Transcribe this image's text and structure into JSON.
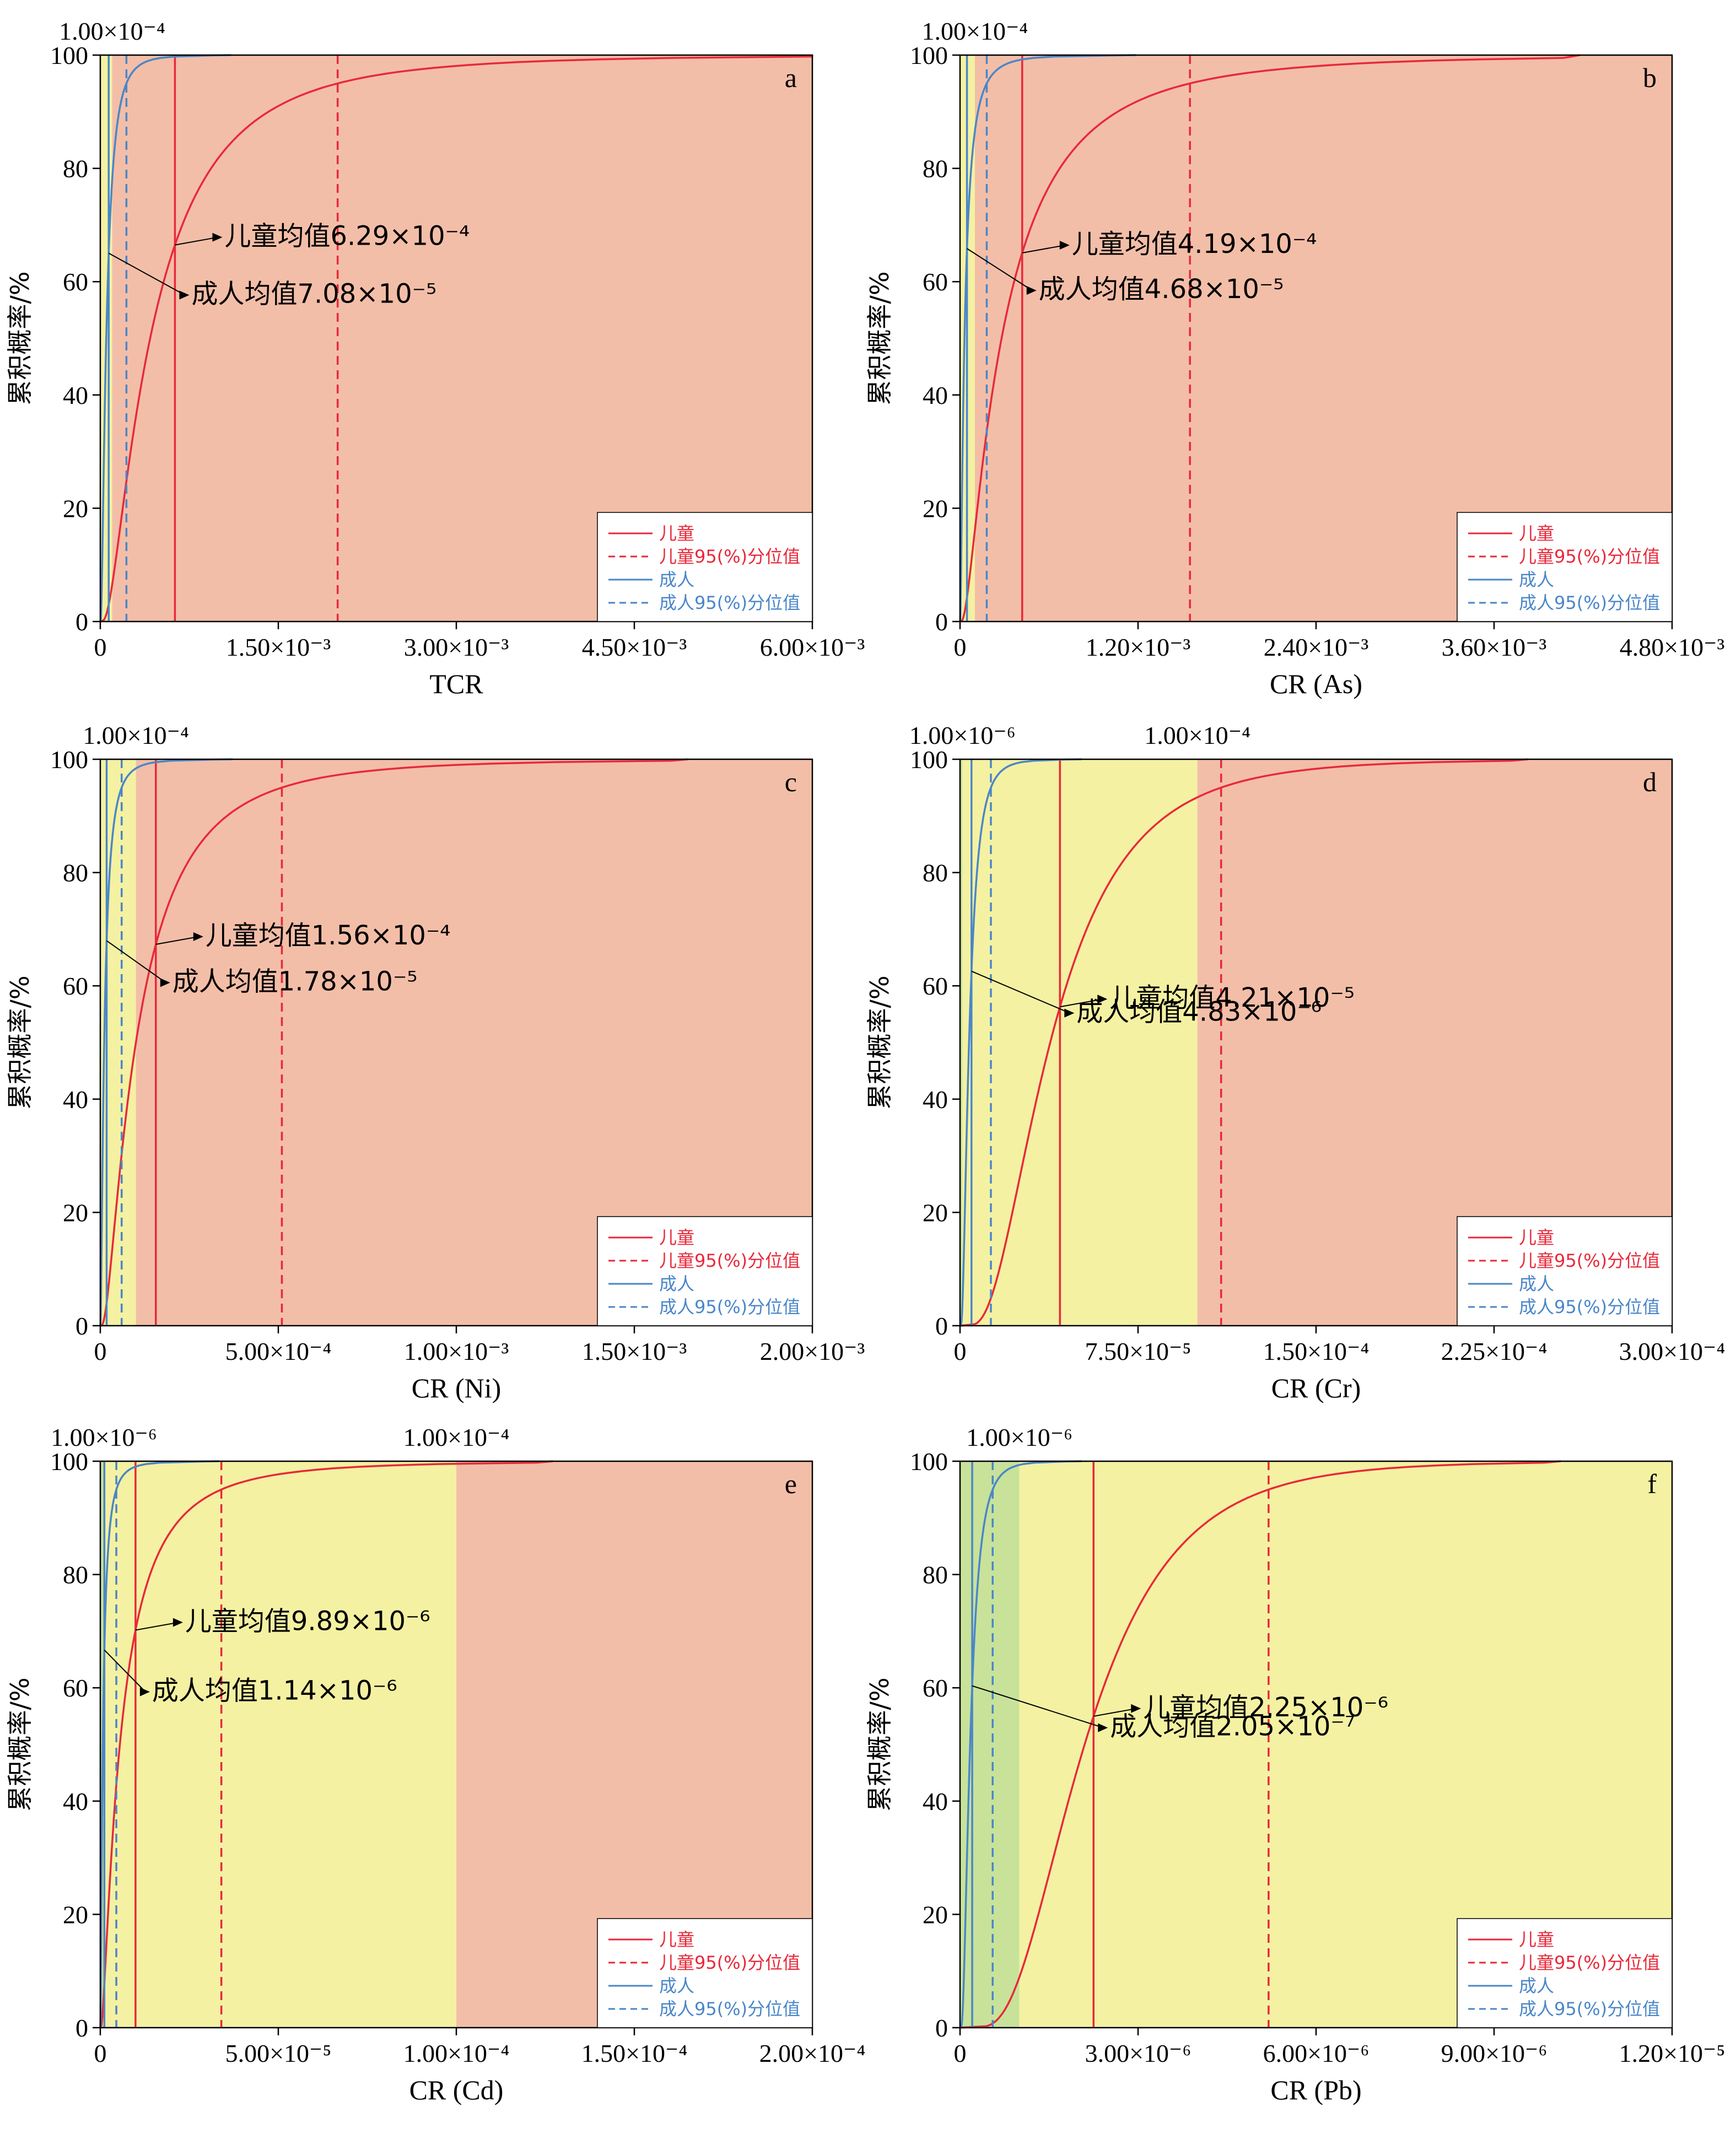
{
  "colors": {
    "child": "#e8293a",
    "adult": "#4a86c8",
    "zone_green": "#c8e29a",
    "zone_yellow": "#f4f1a2",
    "zone_red": "#f3bea8"
  },
  "legend": {
    "child": "儿童",
    "child_p95": "儿童95(%)分位值",
    "adult": "成人",
    "adult_p95": "成人95(%)分位值"
  },
  "chart_data": [
    {
      "type": "line",
      "panel": "a",
      "xlabel": "TCR",
      "ylabel": "累积概率/%",
      "xlim": [
        0,
        0.006
      ],
      "ylim": [
        0,
        100
      ],
      "xticks": [
        0,
        0.0015,
        0.003,
        0.0045,
        0.006
      ],
      "xtick_labels": [
        "0",
        "1.50×10⁻³",
        "3.00×10⁻³",
        "4.50×10⁻³",
        "6.00×10⁻³"
      ],
      "yticks": [
        0,
        20,
        40,
        60,
        80,
        100
      ],
      "ytick_labels": [
        "0",
        "20",
        "40",
        "60",
        "80",
        "100"
      ],
      "zones": [
        {
          "from": 0,
          "to": 1e-06,
          "color": "green"
        },
        {
          "from": 1e-06,
          "to": 0.0001,
          "color": "yellow"
        },
        {
          "from": 0.0001,
          "to": 0.006,
          "color": "red"
        }
      ],
      "thresholds": [
        {
          "value": 0.0001,
          "label": "1.00×10⁻⁴"
        }
      ],
      "series": [
        {
          "name": "儿童",
          "median": 0.00042,
          "mean": 0.000629,
          "p95": 0.002
        },
        {
          "name": "成人",
          "median": 5e-05,
          "mean": 7.08e-05,
          "p95": 0.00022
        }
      ],
      "annotations": [
        {
          "text": "儿童均值6.29×10⁻⁴",
          "series": "儿童",
          "x": 0.000629
        },
        {
          "text": "成人均值7.08×10⁻⁵",
          "series": "成人",
          "x": 7.08e-05
        }
      ]
    },
    {
      "type": "line",
      "panel": "b",
      "xlabel": "CR (As)",
      "ylabel": "累积概率/%",
      "xlim": [
        0,
        0.0048
      ],
      "ylim": [
        0,
        100
      ],
      "xticks": [
        0,
        0.0012,
        0.0024,
        0.0036,
        0.0048
      ],
      "xtick_labels": [
        "0",
        "1.20×10⁻³",
        "2.40×10⁻³",
        "3.60×10⁻³",
        "4.80×10⁻³"
      ],
      "yticks": [
        0,
        20,
        40,
        60,
        80,
        100
      ],
      "ytick_labels": [
        "0",
        "20",
        "40",
        "60",
        "80",
        "100"
      ],
      "zones": [
        {
          "from": 0,
          "to": 1e-06,
          "color": "green"
        },
        {
          "from": 1e-06,
          "to": 0.0001,
          "color": "yellow"
        },
        {
          "from": 0.0001,
          "to": 0.0048,
          "color": "red"
        }
      ],
      "thresholds": [
        {
          "value": 0.0001,
          "label": "1.00×10⁻⁴"
        }
      ],
      "series": [
        {
          "name": "儿童",
          "median": 0.00028,
          "mean": 0.000419,
          "p95": 0.00155
        },
        {
          "name": "成人",
          "median": 3e-05,
          "mean": 4.68e-05,
          "p95": 0.00018
        }
      ],
      "annotations": [
        {
          "text": "儿童均值4.19×10⁻⁴",
          "series": "儿童",
          "x": 0.000419
        },
        {
          "text": "成人均值4.68×10⁻⁵",
          "series": "成人",
          "x": 4.68e-05
        }
      ]
    },
    {
      "type": "line",
      "panel": "c",
      "xlabel": "CR (Ni)",
      "ylabel": "累积概率/%",
      "xlim": [
        0,
        0.002
      ],
      "ylim": [
        0,
        100
      ],
      "xticks": [
        0,
        0.0005,
        0.001,
        0.0015,
        0.002
      ],
      "xtick_labels": [
        "0",
        "5.00×10⁻⁴",
        "1.00×10⁻³",
        "1.50×10⁻³",
        "2.00×10⁻³"
      ],
      "yticks": [
        0,
        20,
        40,
        60,
        80,
        100
      ],
      "ytick_labels": [
        "0",
        "20",
        "40",
        "60",
        "80",
        "100"
      ],
      "zones": [
        {
          "from": 0,
          "to": 1e-06,
          "color": "green"
        },
        {
          "from": 1e-06,
          "to": 0.0001,
          "color": "yellow"
        },
        {
          "from": 0.0001,
          "to": 0.002,
          "color": "red"
        }
      ],
      "thresholds": [
        {
          "value": 0.0001,
          "label": "1.00×10⁻⁴"
        }
      ],
      "series": [
        {
          "name": "儿童",
          "median": 0.0001,
          "mean": 0.000156,
          "p95": 0.00051
        },
        {
          "name": "成人",
          "median": 1.1e-05,
          "mean": 1.78e-05,
          "p95": 6e-05
        }
      ],
      "annotations": [
        {
          "text": "儿童均值1.56×10⁻⁴",
          "series": "儿童",
          "x": 0.000156
        },
        {
          "text": "成人均值1.78×10⁻⁵",
          "series": "成人",
          "x": 1.78e-05
        }
      ]
    },
    {
      "type": "line",
      "panel": "d",
      "xlabel": "CR (Cr)",
      "ylabel": "累积概率/%",
      "xlim": [
        0,
        0.0003
      ],
      "ylim": [
        0,
        100
      ],
      "xticks": [
        0,
        7.5e-05,
        0.00015,
        0.000225,
        0.0003
      ],
      "xtick_labels": [
        "0",
        "7.50×10⁻⁵",
        "1.50×10⁻⁴",
        "2.25×10⁻⁴",
        "3.00×10⁻⁴"
      ],
      "yticks": [
        0,
        20,
        40,
        60,
        80,
        100
      ],
      "ytick_labels": [
        "0",
        "20",
        "40",
        "60",
        "80",
        "100"
      ],
      "zones": [
        {
          "from": 0,
          "to": 1e-06,
          "color": "green"
        },
        {
          "from": 1e-06,
          "to": 0.0001,
          "color": "yellow"
        },
        {
          "from": 0.0001,
          "to": 0.0003,
          "color": "red"
        }
      ],
      "thresholds": [
        {
          "value": 1e-06,
          "label": "1.00×10⁻⁶"
        },
        {
          "value": 0.0001,
          "label": "1.00×10⁻⁴"
        }
      ],
      "series": [
        {
          "name": "儿童",
          "median": 3.8e-05,
          "mean": 4.21e-05,
          "p95": 0.00011
        },
        {
          "name": "成人",
          "median": 3.8e-06,
          "mean": 4.83e-06,
          "p95": 1.3e-05
        }
      ],
      "annotations": [
        {
          "text": "儿童均值4.21×10⁻⁵",
          "series": "儿童",
          "x": 4.21e-05
        },
        {
          "text": "成人均值4.83×10⁻⁶",
          "series": "成人",
          "x": 4.83e-06
        }
      ]
    },
    {
      "type": "line",
      "panel": "e",
      "xlabel": "CR (Cd)",
      "ylabel": "累积概率/%",
      "xlim": [
        0,
        0.0002
      ],
      "ylim": [
        0,
        100
      ],
      "xticks": [
        0,
        5e-05,
        0.0001,
        0.00015,
        0.0002
      ],
      "xtick_labels": [
        "0",
        "5.00×10⁻⁵",
        "1.00×10⁻⁴",
        "1.50×10⁻⁴",
        "2.00×10⁻⁴"
      ],
      "yticks": [
        0,
        20,
        40,
        60,
        80,
        100
      ],
      "ytick_labels": [
        "0",
        "20",
        "40",
        "60",
        "80",
        "100"
      ],
      "zones": [
        {
          "from": 0,
          "to": 1e-06,
          "color": "green"
        },
        {
          "from": 1e-06,
          "to": 0.0001,
          "color": "yellow"
        },
        {
          "from": 0.0001,
          "to": 0.0002,
          "color": "red"
        }
      ],
      "thresholds": [
        {
          "value": 1e-06,
          "label": "1.00×10⁻⁶"
        },
        {
          "value": 0.0001,
          "label": "1.00×10⁻⁴"
        }
      ],
      "series": [
        {
          "name": "儿童",
          "median": 5.5e-06,
          "mean": 9.89e-06,
          "p95": 3.4e-05
        },
        {
          "name": "成人",
          "median": 7e-07,
          "mean": 1.14e-06,
          "p95": 4.5e-06
        }
      ],
      "annotations": [
        {
          "text": "儿童均值9.89×10⁻⁶",
          "series": "儿童",
          "x": 9.89e-06
        },
        {
          "text": "成人均值1.14×10⁻⁶",
          "series": "成人",
          "x": 1.14e-06
        }
      ]
    },
    {
      "type": "line",
      "panel": "f",
      "xlabel": "CR (Pb)",
      "ylabel": "累积概率/%",
      "xlim": [
        0,
        1.2e-05
      ],
      "ylim": [
        0,
        100
      ],
      "xticks": [
        0,
        3e-06,
        6e-06,
        9e-06,
        1.2e-05
      ],
      "xtick_labels": [
        "0",
        "3.00×10⁻⁶",
        "6.00×10⁻⁶",
        "9.00×10⁻⁶",
        "1.20×10⁻⁵"
      ],
      "yticks": [
        0,
        20,
        40,
        60,
        80,
        100
      ],
      "ytick_labels": [
        "0",
        "20",
        "40",
        "60",
        "80",
        "100"
      ],
      "zones": [
        {
          "from": 0,
          "to": 1e-06,
          "color": "green"
        },
        {
          "from": 1e-06,
          "to": 1.2e-05,
          "color": "yellow"
        }
      ],
      "thresholds": [
        {
          "value": 1e-06,
          "label": "1.00×10⁻⁶"
        }
      ],
      "series": [
        {
          "name": "儿童",
          "median": 2.1e-06,
          "mean": 2.25e-06,
          "p95": 5.2e-06
        },
        {
          "name": "成人",
          "median": 1.7e-07,
          "mean": 2.05e-07,
          "p95": 5.5e-07
        }
      ],
      "annotations": [
        {
          "text": "儿童均值2.25×10⁻⁶",
          "series": "儿童",
          "x": 2.25e-06
        },
        {
          "text": "成人均值2.05×10⁻⁷",
          "series": "成人",
          "x": 2.05e-07
        }
      ]
    }
  ]
}
